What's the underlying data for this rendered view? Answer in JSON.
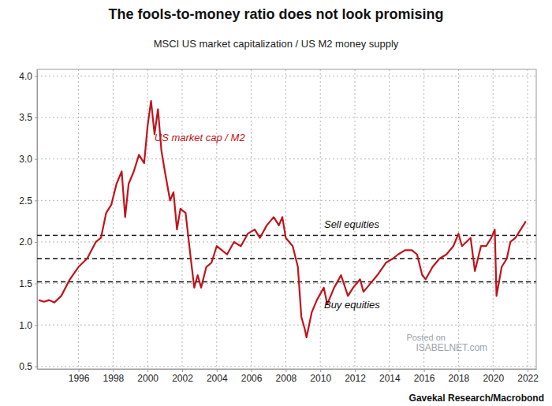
{
  "chart_data": {
    "type": "line",
    "title": "The fools-to-money ratio does not look promising",
    "subtitle": "MSCI US market capitalization / US M2 money supply",
    "source": "Gavekal Research/Macrobond",
    "watermark": [
      "Posted on",
      "ISABELNET.com"
    ],
    "x": [
      1993.7,
      1994.0,
      1994.3,
      1994.6,
      1995.0,
      1995.5,
      1996.0,
      1996.5,
      1997.0,
      1997.3,
      1997.6,
      1997.9,
      1998.2,
      1998.5,
      1998.7,
      1998.9,
      1999.2,
      1999.5,
      1999.8,
      2000.0,
      2000.2,
      2000.4,
      2000.6,
      2000.8,
      2001.0,
      2001.3,
      2001.5,
      2001.7,
      2001.9,
      2002.2,
      2002.5,
      2002.7,
      2002.9,
      2003.1,
      2003.4,
      2003.7,
      2004.0,
      2004.3,
      2004.6,
      2005.0,
      2005.4,
      2005.8,
      2006.2,
      2006.5,
      2006.9,
      2007.3,
      2007.6,
      2007.8,
      2008.0,
      2008.4,
      2008.7,
      2008.9,
      2009.1,
      2009.2,
      2009.5,
      2009.8,
      2010.2,
      2010.4,
      2010.8,
      2011.2,
      2011.6,
      2011.9,
      2012.3,
      2012.5,
      2012.9,
      2013.3,
      2013.8,
      2014.2,
      2014.5,
      2014.9,
      2015.3,
      2015.6,
      2015.9,
      2016.1,
      2016.5,
      2016.9,
      2017.3,
      2017.7,
      2018.0,
      2018.2,
      2018.7,
      2018.95,
      2019.3,
      2019.6,
      2019.9,
      2020.1,
      2020.2,
      2020.5,
      2020.8,
      2021.0,
      2021.3,
      2021.6,
      2021.9
    ],
    "series": [
      {
        "name": "US market cap / M2",
        "color": "#c0141c",
        "values": [
          1.3,
          1.28,
          1.3,
          1.27,
          1.35,
          1.55,
          1.7,
          1.8,
          2.0,
          2.05,
          2.35,
          2.45,
          2.7,
          2.85,
          2.3,
          2.7,
          2.85,
          3.05,
          2.95,
          3.4,
          3.7,
          3.3,
          3.6,
          3.1,
          2.85,
          2.5,
          2.6,
          2.15,
          2.4,
          2.35,
          1.8,
          1.45,
          1.6,
          1.45,
          1.7,
          1.75,
          1.95,
          1.9,
          1.85,
          2.0,
          1.95,
          2.1,
          2.15,
          2.05,
          2.2,
          2.3,
          2.2,
          2.3,
          2.05,
          1.95,
          1.7,
          1.1,
          0.95,
          0.85,
          1.15,
          1.3,
          1.45,
          1.25,
          1.45,
          1.6,
          1.35,
          1.45,
          1.55,
          1.4,
          1.5,
          1.6,
          1.75,
          1.8,
          1.85,
          1.9,
          1.9,
          1.85,
          1.6,
          1.55,
          1.7,
          1.8,
          1.85,
          1.95,
          2.1,
          1.95,
          2.05,
          1.65,
          1.95,
          1.95,
          2.05,
          2.15,
          1.35,
          1.7,
          1.8,
          2.0,
          2.05,
          2.15,
          2.25
        ]
      }
    ],
    "reference_lines": [
      {
        "value": 2.08,
        "label": "Sell equities"
      },
      {
        "value": 1.8
      },
      {
        "value": 1.52,
        "label": "Buy equities"
      }
    ],
    "xlim": [
      1993.6,
      2022.5
    ],
    "ylim": [
      0.47,
      4.08
    ],
    "xticks": [
      1996,
      1998,
      2000,
      2002,
      2004,
      2006,
      2008,
      2010,
      2012,
      2014,
      2016,
      2018,
      2020,
      2022
    ],
    "yticks": [
      0.5,
      {
        "value": 1,
        "label": "1.0"
      },
      1.5,
      {
        "value": 2,
        "label": "2.0"
      },
      2.5,
      {
        "value": 3,
        "label": "3.0"
      },
      3.5,
      {
        "value": 4,
        "label": "4.0"
      }
    ],
    "grid": true
  }
}
